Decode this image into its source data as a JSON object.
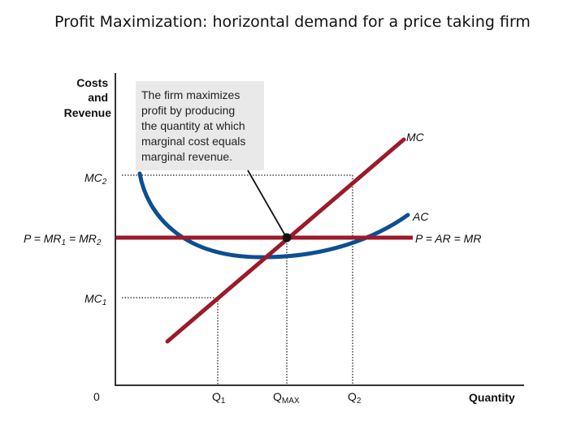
{
  "title": "Profit Maximization: horizontal demand for a price taking firm",
  "y_axis_label": [
    "Costs",
    "and",
    "Revenue"
  ],
  "x_axis_label": "Quantity",
  "origin_label": "0",
  "annotation": [
    "The firm maximizes",
    "profit by producing",
    "the quantity at which",
    "marginal cost equals",
    "marginal revenue."
  ],
  "curves": {
    "mc": {
      "label": "MC",
      "color": "#9b1b2a"
    },
    "ac": {
      "label": "AC",
      "color": "#0c4f92"
    },
    "demand": {
      "label": "P = AR = MR",
      "color": "#9b1b2a"
    }
  },
  "y_labels": {
    "mc2": {
      "main": "MC",
      "sub": "2"
    },
    "price": {
      "text": "P = MR",
      "sub1": "1",
      "mid": " = MR",
      "sub2": "2"
    },
    "mc1": {
      "main": "MC",
      "sub": "1"
    }
  },
  "x_labels": {
    "q1": {
      "main": "Q",
      "sub": "1"
    },
    "qmax": {
      "main": "Q",
      "sub": "MAX"
    },
    "q2": {
      "main": "Q",
      "sub": "2"
    }
  }
}
